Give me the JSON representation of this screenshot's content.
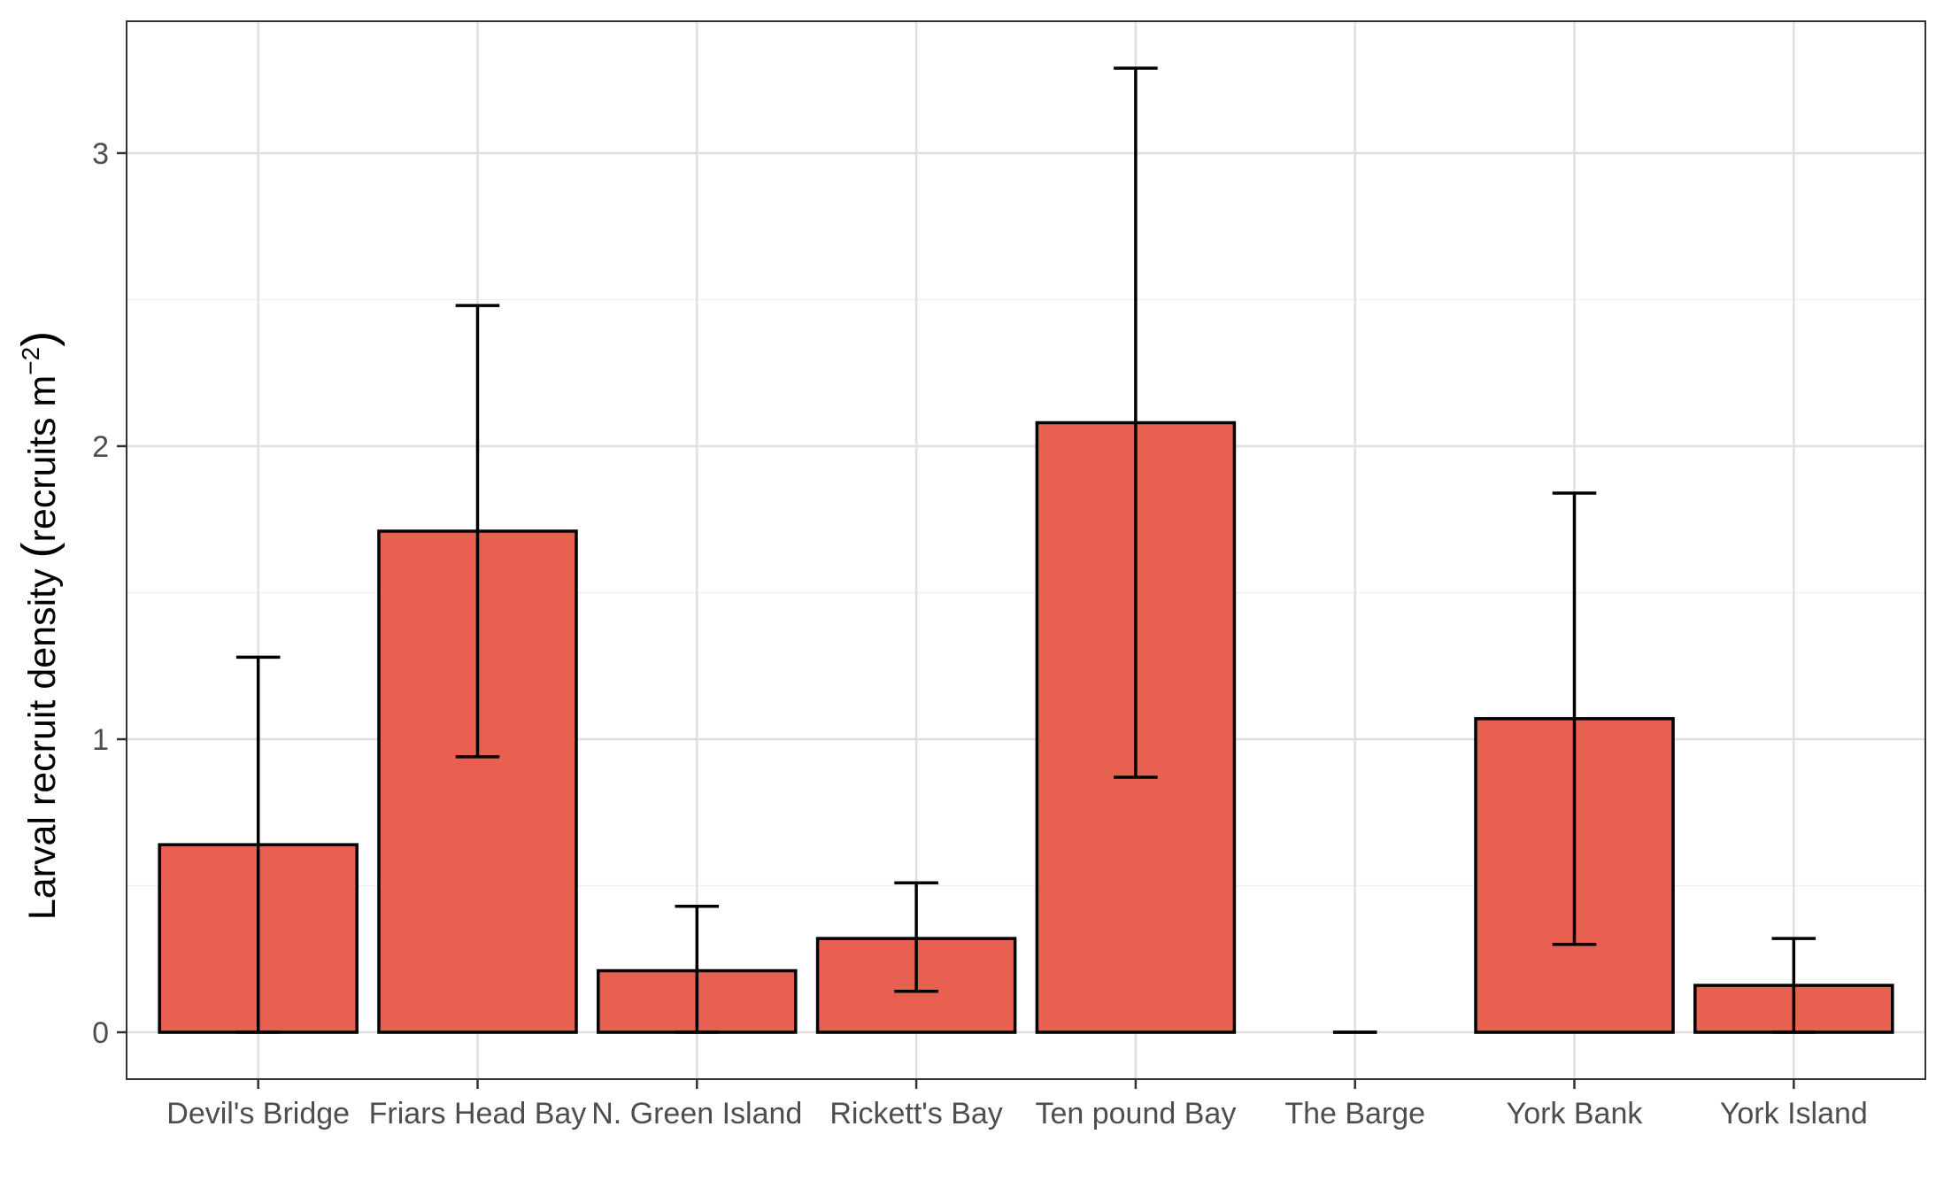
{
  "chart_data": {
    "type": "bar",
    "title": "",
    "xlabel": "",
    "ylabel": "Larval recruit density",
    "ylabel_unit": "recruits m",
    "ylabel_unit_exponent": "−2",
    "ylim": [
      -0.16,
      3.45
    ],
    "y_ticks": [
      0,
      1,
      2,
      3
    ],
    "grid": true,
    "legend": "none",
    "categories": [
      "Devil's Bridge",
      "Friars Head Bay",
      "N. Green Island",
      "Rickett's Bay",
      "Ten pound Bay",
      "The Barge",
      "York Bank",
      "York Island"
    ],
    "values": [
      0.64,
      1.71,
      0.21,
      0.32,
      2.08,
      0.0,
      1.07,
      0.16
    ],
    "error_low": [
      0.0,
      0.94,
      0.0,
      0.14,
      0.87,
      0.0,
      0.3,
      0.0
    ],
    "error_high": [
      1.28,
      2.48,
      0.43,
      0.51,
      3.29,
      0.0,
      1.84,
      0.32
    ],
    "colors": {
      "bar_fill": "#e8604f",
      "bar_stroke": "#000000",
      "grid_major": "#e0e0e0",
      "grid_minor": "#efefef",
      "panel_border": "#333333"
    }
  }
}
